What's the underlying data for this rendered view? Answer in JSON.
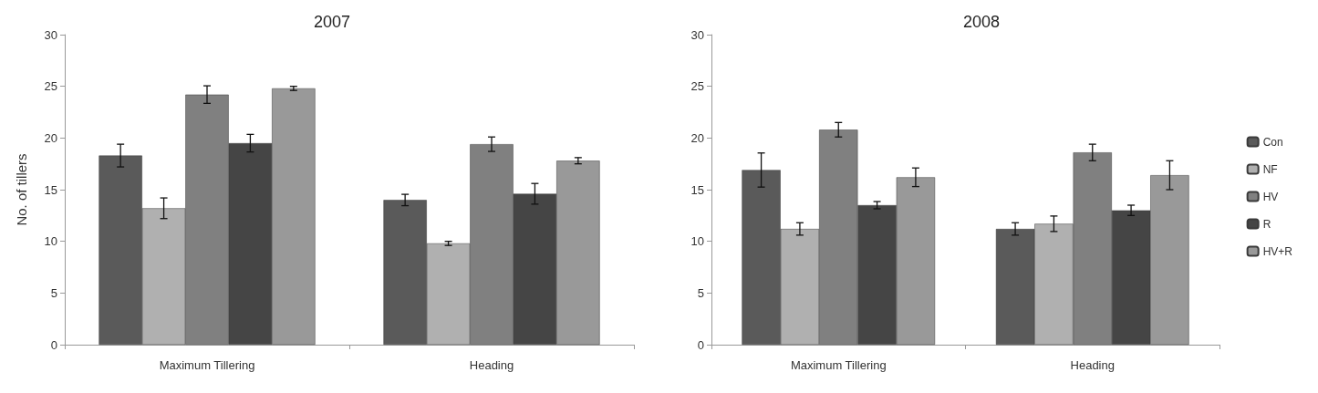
{
  "chart_data": [
    {
      "type": "bar",
      "title": "2007",
      "ylabel": "No. of tillers",
      "categories": [
        "Maximum Tillering",
        "Heading"
      ],
      "ylim": [
        0,
        30
      ],
      "yticks": [
        0,
        5,
        10,
        15,
        20,
        25,
        30
      ],
      "grid": false,
      "legend": false,
      "series": [
        {
          "color": "#5a5a5a",
          "values": [
            18.3,
            14.0
          ],
          "errors": [
            1.1,
            0.55
          ]
        },
        {
          "color": "#b0b0b0",
          "values": [
            13.2,
            9.8
          ],
          "errors": [
            1.0,
            0.2
          ]
        },
        {
          "color": "#808080",
          "values": [
            24.2,
            19.4
          ],
          "errors": [
            0.85,
            0.7
          ]
        },
        {
          "color": "#454545",
          "values": [
            19.5,
            14.6
          ],
          "errors": [
            0.85,
            1.0
          ]
        },
        {
          "color": "#999999",
          "values": [
            24.8,
            17.8
          ],
          "errors": [
            0.2,
            0.3
          ]
        }
      ]
    },
    {
      "type": "bar",
      "title": "2008",
      "categories": [
        "Maximum Tillering",
        "Heading"
      ],
      "ylim": [
        0,
        30
      ],
      "yticks": [
        0,
        5,
        10,
        15,
        20,
        25,
        30
      ],
      "grid": false,
      "legend": "right",
      "series": [
        {
          "name": "Con",
          "color": "#5a5a5a",
          "values": [
            16.9,
            11.2
          ],
          "errors": [
            1.65,
            0.6
          ]
        },
        {
          "name": "NF",
          "color": "#b0b0b0",
          "values": [
            11.2,
            11.7
          ],
          "errors": [
            0.6,
            0.75
          ]
        },
        {
          "name": "HV",
          "color": "#808080",
          "values": [
            20.8,
            18.6
          ],
          "errors": [
            0.7,
            0.8
          ]
        },
        {
          "name": "R",
          "color": "#454545",
          "values": [
            13.5,
            13.0
          ],
          "errors": [
            0.35,
            0.5
          ]
        },
        {
          "name": "HV+R",
          "color": "#999999",
          "values": [
            16.2,
            16.4
          ],
          "errors": [
            0.9,
            1.4
          ]
        }
      ]
    }
  ]
}
